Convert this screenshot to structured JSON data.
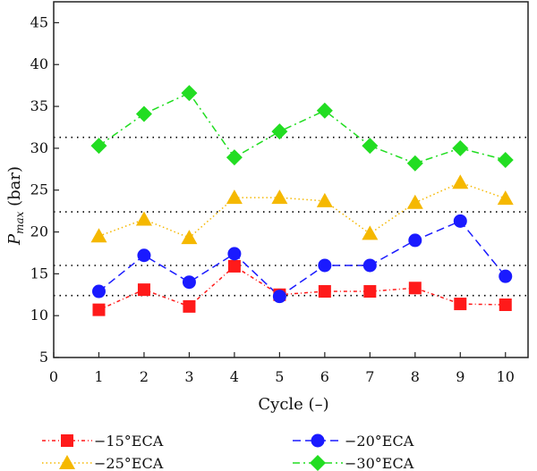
{
  "chart_data": {
    "type": "line",
    "xlabel": "Cycle (–)",
    "ylabel_main": "P",
    "ylabel_sub": "max",
    "ylabel_unit": " (bar)",
    "xlim": [
      0,
      10.5
    ],
    "ylim": [
      5,
      47.5
    ],
    "x_ticks": [
      0,
      1,
      2,
      3,
      4,
      5,
      6,
      7,
      8,
      9,
      10
    ],
    "y_ticks": [
      5,
      10,
      15,
      20,
      25,
      30,
      35,
      40,
      45
    ],
    "grid": false,
    "legend_placement": "bottom",
    "reference_lines": [
      12.4,
      16.0,
      22.4,
      31.3
    ],
    "reference_line_color": "#000000",
    "categories": [
      1,
      2,
      3,
      4,
      5,
      6,
      7,
      8,
      9,
      10
    ],
    "series": [
      {
        "name": "−15°ECA",
        "color": "#ff1a1a",
        "marker": "square",
        "dash": "4 3 1 3",
        "values": [
          10.7,
          13.1,
          11.1,
          15.9,
          12.5,
          12.9,
          12.9,
          13.3,
          11.4,
          11.3
        ]
      },
      {
        "name": "−20°ECA",
        "color": "#1a1aff",
        "marker": "circle",
        "dash": "9 5",
        "values": [
          12.9,
          17.2,
          14.0,
          17.4,
          12.3,
          16.0,
          16.0,
          19.0,
          21.3,
          14.7
        ]
      },
      {
        "name": "−25°ECA",
        "color": "#f5b800",
        "marker": "triangle",
        "dash": "1.5 3",
        "values": [
          19.5,
          21.5,
          19.3,
          24.1,
          24.1,
          23.7,
          19.8,
          23.5,
          25.9,
          24.0
        ]
      },
      {
        "name": "−30°ECA",
        "color": "#22dd22",
        "marker": "diamond",
        "dash": "8 4 2 4",
        "values": [
          30.3,
          34.1,
          36.6,
          28.9,
          32.0,
          34.5,
          30.3,
          28.2,
          30.0,
          28.6
        ]
      }
    ]
  }
}
